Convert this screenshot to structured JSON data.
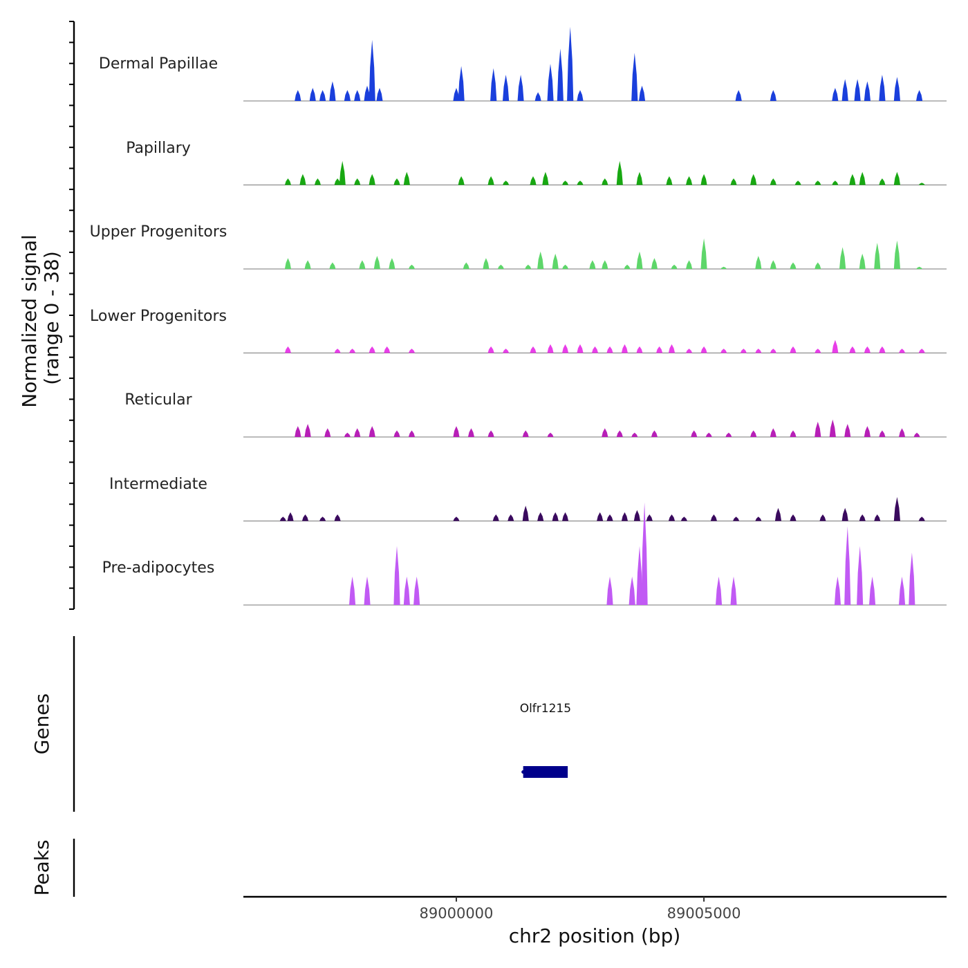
{
  "chart_data": {
    "type": "area",
    "region": {
      "chrom": "chr2",
      "start": 88995700,
      "end": 89009900
    },
    "signal_axis_title": [
      "Normalized signal",
      "(range 0 - 38)"
    ],
    "signal_range": [
      0,
      38
    ],
    "x_axis": {
      "title": "chr2 position (bp)",
      "ticks": [
        89000000,
        89005000
      ],
      "tick_labels": [
        "89000000",
        "89005000"
      ]
    },
    "panel_titles": {
      "genes": "Genes",
      "peaks": "Peaks"
    },
    "tracks": [
      {
        "name": "Dermal Papillae",
        "color": "#1a3fdc",
        "peaks": [
          [
            88996800,
            5
          ],
          [
            88997100,
            6
          ],
          [
            88997300,
            5
          ],
          [
            88997500,
            9
          ],
          [
            88997800,
            5
          ],
          [
            88998000,
            5
          ],
          [
            88998200,
            7
          ],
          [
            88998300,
            28
          ],
          [
            88998450,
            6
          ],
          [
            89000000,
            6
          ],
          [
            89000100,
            16
          ],
          [
            89000750,
            15
          ],
          [
            89001000,
            12
          ],
          [
            89001300,
            12
          ],
          [
            89001650,
            4
          ],
          [
            89001900,
            17
          ],
          [
            89002100,
            24
          ],
          [
            89002300,
            34
          ],
          [
            89002500,
            5
          ],
          [
            89003600,
            22
          ],
          [
            89003750,
            7
          ],
          [
            89005700,
            5
          ],
          [
            89006400,
            5
          ],
          [
            89007650,
            6
          ],
          [
            89007850,
            10
          ],
          [
            89008100,
            10
          ],
          [
            89008300,
            9
          ],
          [
            89008600,
            12
          ],
          [
            89008900,
            11
          ],
          [
            89009350,
            5
          ]
        ]
      },
      {
        "name": "Papillary",
        "color": "#18a812",
        "peaks": [
          [
            88996600,
            3
          ],
          [
            88996900,
            5
          ],
          [
            88997200,
            3
          ],
          [
            88997600,
            3
          ],
          [
            88997700,
            11
          ],
          [
            88998000,
            3
          ],
          [
            88998300,
            5
          ],
          [
            88998800,
            3
          ],
          [
            88999000,
            6
          ],
          [
            89000100,
            4
          ],
          [
            89000700,
            4
          ],
          [
            89001000,
            2
          ],
          [
            89001550,
            4
          ],
          [
            89001800,
            6
          ],
          [
            89002200,
            2
          ],
          [
            89002500,
            2
          ],
          [
            89003000,
            3
          ],
          [
            89003300,
            11
          ],
          [
            89003700,
            6
          ],
          [
            89004300,
            4
          ],
          [
            89004700,
            4
          ],
          [
            89005000,
            5
          ],
          [
            89005600,
            3
          ],
          [
            89006000,
            5
          ],
          [
            89006400,
            3
          ],
          [
            89006900,
            2
          ],
          [
            89007300,
            2
          ],
          [
            89007650,
            2
          ],
          [
            89008000,
            5
          ],
          [
            89008200,
            6
          ],
          [
            89008600,
            3
          ],
          [
            89008900,
            6
          ],
          [
            89009400,
            1
          ]
        ]
      },
      {
        "name": "Upper Progenitors",
        "color": "#5ed66a",
        "peaks": [
          [
            88996600,
            5
          ],
          [
            88997000,
            4
          ],
          [
            88997500,
            3
          ],
          [
            88998100,
            4
          ],
          [
            88998400,
            6
          ],
          [
            88998700,
            5
          ],
          [
            88999100,
            2
          ],
          [
            89000200,
            3
          ],
          [
            89000600,
            5
          ],
          [
            89000900,
            2
          ],
          [
            89001450,
            2
          ],
          [
            89001700,
            8
          ],
          [
            89002000,
            7
          ],
          [
            89002200,
            2
          ],
          [
            89002750,
            4
          ],
          [
            89003000,
            4
          ],
          [
            89003450,
            2
          ],
          [
            89003700,
            8
          ],
          [
            89004000,
            5
          ],
          [
            89004400,
            2
          ],
          [
            89004700,
            4
          ],
          [
            89005000,
            14
          ],
          [
            89005400,
            1
          ],
          [
            89006100,
            6
          ],
          [
            89006400,
            4
          ],
          [
            89006800,
            3
          ],
          [
            89007300,
            3
          ],
          [
            89007800,
            10
          ],
          [
            89008200,
            7
          ],
          [
            89008500,
            12
          ],
          [
            89008900,
            13
          ],
          [
            89009350,
            1
          ]
        ]
      },
      {
        "name": "Lower Progenitors",
        "color": "#e83ee8",
        "peaks": [
          [
            88996600,
            3
          ],
          [
            88997600,
            2
          ],
          [
            88997900,
            2
          ],
          [
            88998300,
            3
          ],
          [
            88998600,
            3
          ],
          [
            88999100,
            2
          ],
          [
            89000700,
            3
          ],
          [
            89001000,
            2
          ],
          [
            89001550,
            3
          ],
          [
            89001900,
            4
          ],
          [
            89002200,
            4
          ],
          [
            89002500,
            4
          ],
          [
            89002800,
            3
          ],
          [
            89003100,
            3
          ],
          [
            89003400,
            4
          ],
          [
            89003700,
            3
          ],
          [
            89004100,
            3
          ],
          [
            89004350,
            4
          ],
          [
            89004700,
            2
          ],
          [
            89005000,
            3
          ],
          [
            89005400,
            2
          ],
          [
            89005800,
            2
          ],
          [
            89006100,
            2
          ],
          [
            89006400,
            2
          ],
          [
            89006800,
            3
          ],
          [
            89007300,
            2
          ],
          [
            89007650,
            6
          ],
          [
            89008000,
            3
          ],
          [
            89008300,
            3
          ],
          [
            89008600,
            3
          ],
          [
            89009000,
            2
          ],
          [
            89009400,
            2
          ]
        ]
      },
      {
        "name": "Reticular",
        "color": "#b71fb7",
        "peaks": [
          [
            88996800,
            5
          ],
          [
            88997000,
            6
          ],
          [
            88997400,
            4
          ],
          [
            88997800,
            2
          ],
          [
            88998000,
            4
          ],
          [
            88998300,
            5
          ],
          [
            88998800,
            3
          ],
          [
            88999100,
            3
          ],
          [
            89000000,
            5
          ],
          [
            89000300,
            4
          ],
          [
            89000700,
            3
          ],
          [
            89001400,
            3
          ],
          [
            89001900,
            2
          ],
          [
            89003000,
            4
          ],
          [
            89003300,
            3
          ],
          [
            89003600,
            2
          ],
          [
            89004000,
            3
          ],
          [
            89004800,
            3
          ],
          [
            89005100,
            2
          ],
          [
            89005500,
            2
          ],
          [
            89006000,
            3
          ],
          [
            89006400,
            4
          ],
          [
            89006800,
            3
          ],
          [
            89007300,
            7
          ],
          [
            89007600,
            8
          ],
          [
            89007900,
            6
          ],
          [
            89008300,
            5
          ],
          [
            89008600,
            3
          ],
          [
            89009000,
            4
          ],
          [
            89009300,
            2
          ]
        ]
      },
      {
        "name": "Intermediate",
        "color": "#3a0a5e",
        "peaks": [
          [
            88996500,
            2
          ],
          [
            88996650,
            4
          ],
          [
            88996950,
            3
          ],
          [
            88997300,
            2
          ],
          [
            88997600,
            3
          ],
          [
            89000000,
            2
          ],
          [
            89000800,
            3
          ],
          [
            89001100,
            3
          ],
          [
            89001400,
            7
          ],
          [
            89001700,
            4
          ],
          [
            89002000,
            4
          ],
          [
            89002200,
            4
          ],
          [
            89002900,
            4
          ],
          [
            89003100,
            3
          ],
          [
            89003400,
            4
          ],
          [
            89003650,
            5
          ],
          [
            89003900,
            3
          ],
          [
            89004350,
            3
          ],
          [
            89004600,
            2
          ],
          [
            89005200,
            3
          ],
          [
            89005650,
            2
          ],
          [
            89006100,
            2
          ],
          [
            89006500,
            6
          ],
          [
            89006800,
            3
          ],
          [
            89007400,
            3
          ],
          [
            89007850,
            6
          ],
          [
            89008200,
            3
          ],
          [
            89008500,
            3
          ],
          [
            89008900,
            11
          ],
          [
            89009400,
            2
          ]
        ]
      },
      {
        "name": "Pre-adipocytes",
        "color": "#c15af4",
        "peaks": [
          [
            88997900,
            13
          ],
          [
            88998200,
            13
          ],
          [
            88998800,
            27
          ],
          [
            88999000,
            13
          ],
          [
            88999200,
            13
          ],
          [
            89003100,
            13
          ],
          [
            89003550,
            13
          ],
          [
            89003700,
            27
          ],
          [
            89003800,
            47
          ],
          [
            89005300,
            13
          ],
          [
            89005600,
            13
          ],
          [
            89007700,
            13
          ],
          [
            89007900,
            36
          ],
          [
            89008150,
            27
          ],
          [
            89008400,
            13
          ],
          [
            89009000,
            13
          ],
          [
            89009200,
            24
          ]
        ]
      }
    ],
    "genes": [
      {
        "name": "Olfr1215",
        "start": 89001350,
        "end": 89002250,
        "strand": "-",
        "color": "#00008b"
      }
    ],
    "peak_regions": []
  }
}
